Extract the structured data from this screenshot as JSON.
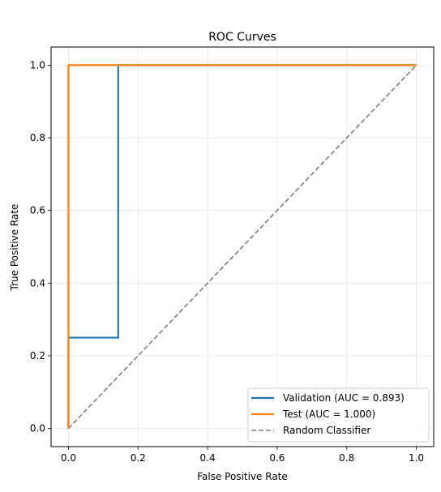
{
  "chart_data": {
    "type": "line",
    "title": "ROC Curves",
    "xlabel": "False Positive Rate",
    "ylabel": "True Positive Rate",
    "xlim": [
      -0.05,
      1.05
    ],
    "ylim": [
      -0.05,
      1.05
    ],
    "xticks": [
      0.0,
      0.2,
      0.4,
      0.6,
      0.8,
      1.0
    ],
    "xtick_labels": [
      "0.0",
      "0.2",
      "0.4",
      "0.6",
      "0.8",
      "1.0"
    ],
    "yticks": [
      0.0,
      0.2,
      0.4,
      0.6,
      0.8,
      1.0
    ],
    "ytick_labels": [
      "0.0",
      "0.2",
      "0.4",
      "0.6",
      "0.8",
      "1.0"
    ],
    "grid": true,
    "legend_position": "lower-right",
    "series": [
      {
        "name": "Validation (AUC = 0.893)",
        "color": "#1f77b4",
        "style": "solid",
        "x": [
          0.0,
          0.0,
          0.143,
          0.143,
          1.0
        ],
        "y": [
          0.0,
          0.25,
          0.25,
          1.0,
          1.0
        ]
      },
      {
        "name": "Test (AUC = 1.000)",
        "color": "#ff7f0e",
        "style": "solid",
        "x": [
          0.0,
          0.0,
          1.0
        ],
        "y": [
          0.0,
          1.0,
          1.0
        ]
      },
      {
        "name": "Random Classifier",
        "color": "#7f7f7f",
        "style": "dashed",
        "x": [
          0.0,
          1.0
        ],
        "y": [
          0.0,
          1.0
        ]
      }
    ]
  }
}
